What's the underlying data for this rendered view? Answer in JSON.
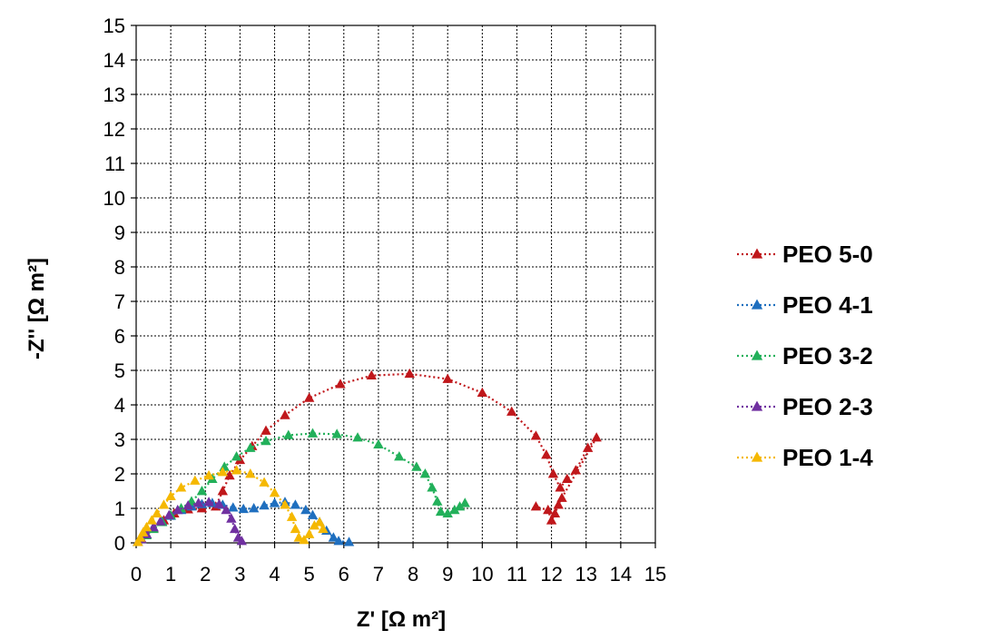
{
  "chart_data": {
    "type": "scatter",
    "xlabel": "Z' [Ω m²]",
    "ylabel": "-Z'' [Ω m²]",
    "xlim": [
      0,
      15
    ],
    "ylim": [
      0,
      15
    ],
    "xticks": [
      "0",
      "1",
      "2",
      "3",
      "4",
      "5",
      "6",
      "7",
      "8",
      "9",
      "10",
      "11",
      "12",
      "13",
      "14",
      "15"
    ],
    "yticks": [
      "0",
      "1",
      "2",
      "3",
      "4",
      "5",
      "6",
      "7",
      "8",
      "9",
      "10",
      "11",
      "12",
      "13",
      "14",
      "15"
    ],
    "grid": true,
    "legend_position": "right",
    "marker": "triangle",
    "line_style": "dotted",
    "series": [
      {
        "name": "PEO 5-0",
        "color": "#c0171b",
        "points": [
          [
            0.05,
            0.02
          ],
          [
            0.15,
            0.12
          ],
          [
            0.3,
            0.25
          ],
          [
            0.5,
            0.42
          ],
          [
            0.8,
            0.65
          ],
          [
            1.1,
            0.85
          ],
          [
            1.5,
            0.97
          ],
          [
            1.9,
            1.0
          ],
          [
            2.3,
            1.05
          ],
          [
            2.5,
            1.5
          ],
          [
            2.7,
            1.95
          ],
          [
            3.0,
            2.4
          ],
          [
            3.35,
            2.8
          ],
          [
            3.75,
            3.25
          ],
          [
            4.3,
            3.7
          ],
          [
            5.0,
            4.2
          ],
          [
            5.9,
            4.6
          ],
          [
            6.8,
            4.85
          ],
          [
            7.9,
            4.9
          ],
          [
            9.0,
            4.75
          ],
          [
            10.0,
            4.35
          ],
          [
            10.85,
            3.8
          ],
          [
            11.55,
            3.1
          ],
          [
            11.85,
            2.55
          ],
          [
            12.05,
            2.0
          ],
          [
            12.25,
            1.6
          ],
          [
            12.45,
            1.85
          ],
          [
            12.7,
            2.1
          ],
          [
            13.05,
            2.75
          ],
          [
            13.3,
            3.05
          ],
          [
            12.3,
            1.3
          ],
          [
            12.2,
            1.1
          ],
          [
            12.1,
            0.85
          ],
          [
            12.0,
            0.65
          ],
          [
            11.9,
            0.95
          ],
          [
            11.55,
            1.05
          ]
        ]
      },
      {
        "name": "PEO 4-1",
        "color": "#1f6fbf",
        "points": [
          [
            0.05,
            0.02
          ],
          [
            0.15,
            0.1
          ],
          [
            0.3,
            0.25
          ],
          [
            0.5,
            0.45
          ],
          [
            0.75,
            0.62
          ],
          [
            1.0,
            0.78
          ],
          [
            1.3,
            0.95
          ],
          [
            1.6,
            1.05
          ],
          [
            1.9,
            1.12
          ],
          [
            2.2,
            1.15
          ],
          [
            2.5,
            1.1
          ],
          [
            2.8,
            1.02
          ],
          [
            3.1,
            0.98
          ],
          [
            3.4,
            1.0
          ],
          [
            3.7,
            1.08
          ],
          [
            4.0,
            1.15
          ],
          [
            4.3,
            1.18
          ],
          [
            4.6,
            1.1
          ],
          [
            4.9,
            0.95
          ],
          [
            5.1,
            0.8
          ],
          [
            5.3,
            0.6
          ],
          [
            5.5,
            0.35
          ],
          [
            5.7,
            0.15
          ],
          [
            5.85,
            0.05
          ],
          [
            6.15,
            0.02
          ]
        ]
      },
      {
        "name": "PEO 3-2",
        "color": "#22b05a",
        "points": [
          [
            0.05,
            0.02
          ],
          [
            0.15,
            0.1
          ],
          [
            0.3,
            0.22
          ],
          [
            0.5,
            0.4
          ],
          [
            0.75,
            0.6
          ],
          [
            1.0,
            0.8
          ],
          [
            1.3,
            1.0
          ],
          [
            1.6,
            1.2
          ],
          [
            1.9,
            1.5
          ],
          [
            2.2,
            1.85
          ],
          [
            2.55,
            2.2
          ],
          [
            2.9,
            2.5
          ],
          [
            3.3,
            2.75
          ],
          [
            3.75,
            2.95
          ],
          [
            4.4,
            3.12
          ],
          [
            5.1,
            3.17
          ],
          [
            5.8,
            3.15
          ],
          [
            6.4,
            3.05
          ],
          [
            7.0,
            2.85
          ],
          [
            7.6,
            2.5
          ],
          [
            8.1,
            2.2
          ],
          [
            8.35,
            2.0
          ],
          [
            8.55,
            1.6
          ],
          [
            8.7,
            1.2
          ],
          [
            8.8,
            0.9
          ],
          [
            9.0,
            0.85
          ],
          [
            9.2,
            0.95
          ],
          [
            9.35,
            1.05
          ],
          [
            9.5,
            1.15
          ]
        ]
      },
      {
        "name": "PEO 2-3",
        "color": "#7030a0",
        "points": [
          [
            0.05,
            0.02
          ],
          [
            0.15,
            0.1
          ],
          [
            0.3,
            0.25
          ],
          [
            0.5,
            0.45
          ],
          [
            0.7,
            0.62
          ],
          [
            0.95,
            0.8
          ],
          [
            1.2,
            0.95
          ],
          [
            1.5,
            1.08
          ],
          [
            1.8,
            1.15
          ],
          [
            2.1,
            1.18
          ],
          [
            2.4,
            1.12
          ],
          [
            2.6,
            0.95
          ],
          [
            2.75,
            0.7
          ],
          [
            2.85,
            0.4
          ],
          [
            2.95,
            0.15
          ],
          [
            3.05,
            0.05
          ]
        ]
      },
      {
        "name": "PEO 1-4",
        "color": "#f5b800",
        "points": [
          [
            0.05,
            0.02
          ],
          [
            0.12,
            0.15
          ],
          [
            0.2,
            0.3
          ],
          [
            0.3,
            0.45
          ],
          [
            0.45,
            0.65
          ],
          [
            0.6,
            0.85
          ],
          [
            0.8,
            1.1
          ],
          [
            1.0,
            1.35
          ],
          [
            1.3,
            1.6
          ],
          [
            1.7,
            1.8
          ],
          [
            2.1,
            1.95
          ],
          [
            2.5,
            2.05
          ],
          [
            2.9,
            2.1
          ],
          [
            3.3,
            2.0
          ],
          [
            3.7,
            1.75
          ],
          [
            4.0,
            1.45
          ],
          [
            4.3,
            1.1
          ],
          [
            4.5,
            0.75
          ],
          [
            4.6,
            0.4
          ],
          [
            4.7,
            0.15
          ],
          [
            4.85,
            0.08
          ],
          [
            5.0,
            0.25
          ],
          [
            5.15,
            0.5
          ],
          [
            5.3,
            0.6
          ],
          [
            5.4,
            0.4
          ]
        ]
      }
    ]
  }
}
